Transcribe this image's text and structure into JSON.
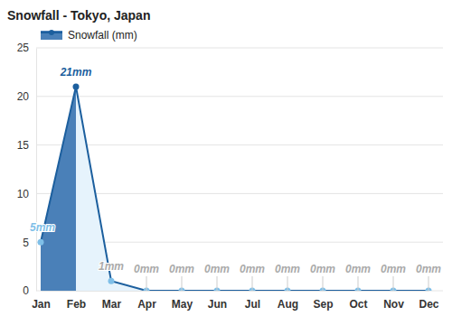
{
  "chart_data": {
    "type": "area",
    "title": "Snowfall - Tokyo, Japan",
    "categories": [
      "Jan",
      "Feb",
      "Mar",
      "Apr",
      "May",
      "Jun",
      "Jul",
      "Aug",
      "Sep",
      "Oct",
      "Nov",
      "Dec"
    ],
    "series": [
      {
        "name": "Snowfall (mm)",
        "color": "#1c5f9e",
        "values": [
          5,
          21,
          1,
          0,
          0,
          0,
          0,
          0,
          0,
          0,
          0,
          0
        ],
        "value_labels": [
          "5mm",
          "21mm",
          "1mm",
          "0mm",
          "0mm",
          "0mm",
          "0mm",
          "0mm",
          "0mm",
          "0mm",
          "0mm",
          "0mm"
        ]
      }
    ],
    "ylim": [
      0,
      25
    ],
    "yticks": [
      0,
      5,
      10,
      15,
      20,
      25
    ],
    "grid": true,
    "legend": "top-left",
    "data_labels": true
  }
}
